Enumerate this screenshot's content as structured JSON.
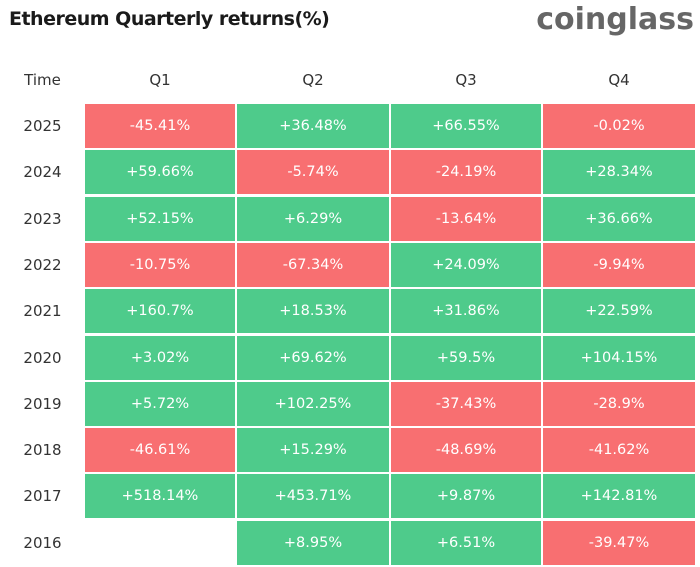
{
  "title": "Ethereum Quarterly returns(%)",
  "logo": "coinglass",
  "colors": {
    "positive": "#4ecb8b",
    "negative": "#f86f71"
  },
  "chart_data": {
    "type": "heatmap",
    "title": "Ethereum Quarterly returns(%)",
    "row_header": "Time",
    "columns": [
      "Q1",
      "Q2",
      "Q3",
      "Q4"
    ],
    "rows": [
      {
        "year": "2025",
        "values": [
          "-45.41%",
          "+36.48%",
          "+66.55%",
          "-0.02%"
        ]
      },
      {
        "year": "2024",
        "values": [
          "+59.66%",
          "-5.74%",
          "-24.19%",
          "+28.34%"
        ]
      },
      {
        "year": "2023",
        "values": [
          "+52.15%",
          "+6.29%",
          "-13.64%",
          "+36.66%"
        ]
      },
      {
        "year": "2022",
        "values": [
          "-10.75%",
          "-67.34%",
          "+24.09%",
          "-9.94%"
        ]
      },
      {
        "year": "2021",
        "values": [
          "+160.7%",
          "+18.53%",
          "+31.86%",
          "+22.59%"
        ]
      },
      {
        "year": "2020",
        "values": [
          "+3.02%",
          "+69.62%",
          "+59.5%",
          "+104.15%"
        ]
      },
      {
        "year": "2019",
        "values": [
          "+5.72%",
          "+102.25%",
          "-37.43%",
          "-28.9%"
        ]
      },
      {
        "year": "2018",
        "values": [
          "-46.61%",
          "+15.29%",
          "-48.69%",
          "-41.62%"
        ]
      },
      {
        "year": "2017",
        "values": [
          "+518.14%",
          "+453.71%",
          "+9.87%",
          "+142.81%"
        ]
      },
      {
        "year": "2016",
        "values": [
          null,
          "+8.95%",
          "+6.51%",
          "-39.47%"
        ]
      }
    ]
  }
}
